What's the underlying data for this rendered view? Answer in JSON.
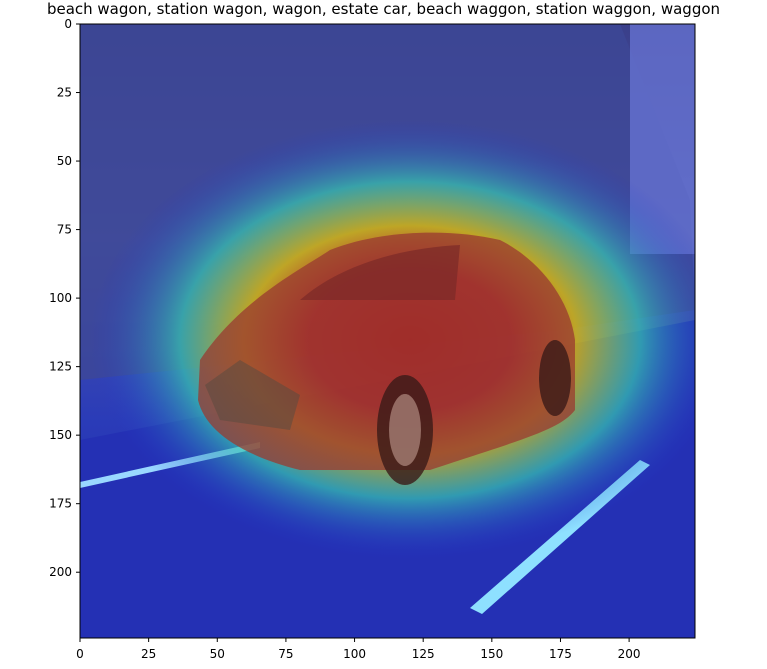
{
  "figure": {
    "title": "beach wagon, station wagon, wagon, estate car, beach waggon, station waggon, waggon"
  },
  "image": {
    "subject": "silver-red compact sedan driving on road at dusk",
    "overlay": "jet-colormap class activation heatmap centred on car"
  },
  "axes": {
    "x_range": [
      0,
      224
    ],
    "y_range": [
      224,
      0
    ],
    "x_ticks": [
      0,
      25,
      50,
      75,
      100,
      125,
      150,
      175,
      200
    ],
    "y_ticks": [
      0,
      25,
      50,
      75,
      100,
      125,
      150,
      175,
      200
    ]
  },
  "colors": {
    "heat_hot": "#c40000",
    "heat_warm": "#e6c800",
    "heat_mid": "#3cc8b4",
    "heat_cool": "#1a2ad8",
    "sky": "#505a96",
    "road": "#22299a"
  }
}
